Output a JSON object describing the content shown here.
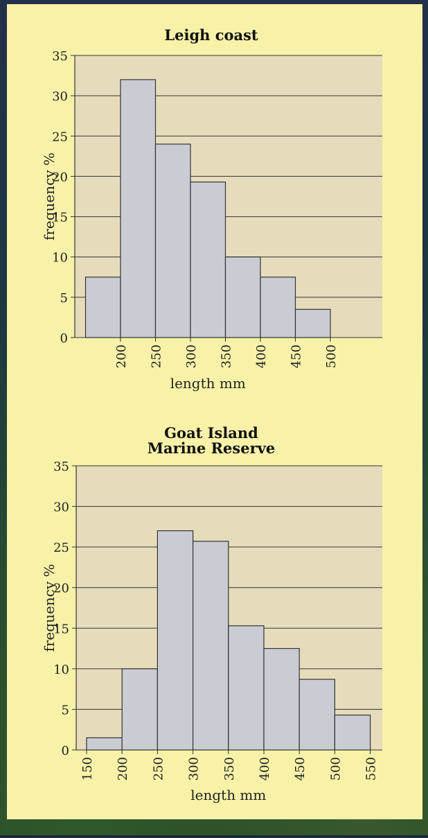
{
  "chart_data": [
    {
      "type": "bar",
      "title": "Leigh coast",
      "xlabel": "length mm",
      "ylabel": "frequency %",
      "bin_edges": [
        150,
        200,
        250,
        300,
        350,
        400,
        450,
        500
      ],
      "x_tick_labels": [
        "200",
        "250",
        "300",
        "350",
        "400",
        "450",
        "500"
      ],
      "y_tick_labels": [
        "0",
        "5",
        "10",
        "15",
        "20",
        "25",
        "30",
        "35"
      ],
      "values": [
        7.5,
        32,
        24,
        19.3,
        10,
        7.5,
        3.5
      ],
      "ylim": [
        0,
        35
      ],
      "grid": true
    },
    {
      "type": "bar",
      "title": "Goat Island\nMarine Reserve",
      "xlabel": "length mm",
      "ylabel": "frequency %",
      "bin_edges": [
        150,
        200,
        250,
        300,
        350,
        400,
        450,
        500,
        550
      ],
      "x_tick_labels": [
        "150",
        "200",
        "250",
        "300",
        "350",
        "400",
        "450",
        "500",
        "550"
      ],
      "y_tick_labels": [
        "0",
        "5",
        "10",
        "15",
        "20",
        "25",
        "30",
        "35"
      ],
      "values": [
        1.5,
        10,
        27,
        25.7,
        15.3,
        12.5,
        8.7,
        4.3
      ],
      "ylim": [
        0,
        35
      ],
      "grid": true
    }
  ],
  "colors": {
    "panel": "#f7f2a8",
    "plot_bg": "#e6dcbb",
    "bar_fill": "#c9ccd3",
    "bar_stroke": "#333333",
    "grid": "#333333"
  }
}
